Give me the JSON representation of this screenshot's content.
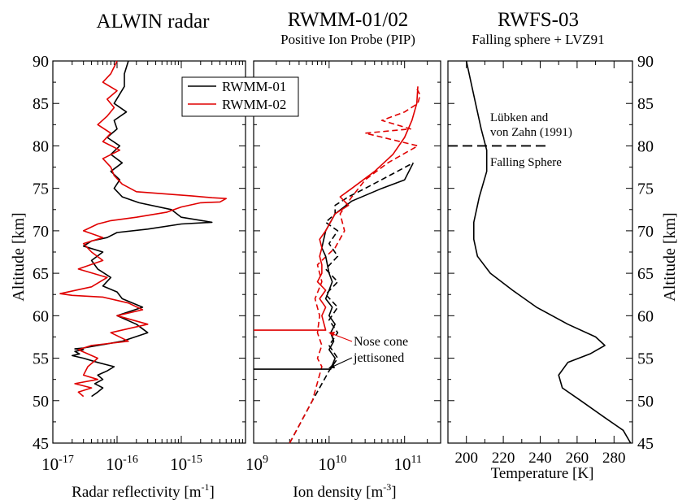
{
  "panels": {
    "left": {
      "title": "ALWIN radar",
      "xlabel": "Radar reflectivity [m",
      "xlabel_sup": "-1",
      "xlabel_end": "]"
    },
    "mid": {
      "title": "RWMM-01/02",
      "subtitle": "Positive Ion Probe (PIP)",
      "xlabel": "Ion density [m",
      "xlabel_sup": "-3",
      "xlabel_end": "]"
    },
    "right": {
      "title": "RWFS-03",
      "subtitle": "Falling sphere + LVZ91",
      "xlabel": "Temperature [K]"
    }
  },
  "ylabel": "Altitude [km]",
  "legend": {
    "items": [
      "RWMM-01",
      "RWMM-02"
    ]
  },
  "annotations": {
    "nose1": "Nose cone",
    "nose2": "jettisoned",
    "lvz1": "Lübken and",
    "lvz2": "von Zahn (1991)",
    "fs": "Falling Sphere"
  },
  "colors": {
    "rwmm01": "#000000",
    "rwmm02": "#e00000"
  },
  "chart_data": [
    {
      "type": "line",
      "title": "ALWIN radar",
      "xlabel": "Radar reflectivity [m^-1]",
      "ylabel": "Altitude [km]",
      "xscale": "log",
      "xlim": [
        1e-17,
        1e-14
      ],
      "ylim": [
        45,
        90
      ],
      "xticks": [
        "10^-17",
        "10^-16",
        "10^-15"
      ],
      "yticks": [
        45,
        50,
        55,
        60,
        65,
        70,
        75,
        80,
        85,
        90
      ],
      "series": [
        {
          "name": "RWMM-01",
          "x": [
            4e-17,
            5e-17,
            6e-17,
            4.5e-17,
            6e-17,
            5e-17,
            7e-17,
            9e-17,
            5e-17,
            3e-17,
            2e-17,
            2.6e-17,
            2.2e-17,
            3e-17,
            2.2e-17,
            3e-17,
            1.2e-16,
            3e-16,
            2e-16,
            1e-16,
            2.5e-16,
            1.2e-16,
            1e-16,
            6e-17,
            8e-17,
            5e-17,
            4e-17,
            6e-17,
            3e-17,
            4e-17,
            7e-17,
            1e-16,
            3e-16,
            1e-15,
            3e-15,
            1e-15,
            7e-16,
            2.2e-16,
            1.2e-16,
            9e-17,
            1.1e-16,
            8e-17,
            1.2e-16,
            8e-17,
            1.1e-16,
            7e-17,
            1e-16,
            9e-17,
            1.4e-16,
            9e-17,
            1.3e-16,
            1.3e-16,
            1.5e-16
          ],
          "y": [
            50.5,
            51,
            51.5,
            52,
            52.5,
            53,
            53.5,
            54,
            54.5,
            55,
            55.3,
            55.5,
            55.8,
            56,
            56.1,
            56.2,
            57,
            58,
            59,
            60,
            61,
            62,
            62.8,
            63.5,
            64.5,
            65.5,
            66.5,
            67.5,
            68.2,
            68.8,
            69.2,
            69.8,
            70.2,
            70.8,
            71,
            71.6,
            72.5,
            73.3,
            74,
            75,
            76,
            77,
            78,
            79,
            80,
            81,
            82,
            83,
            84,
            85,
            87,
            88.5,
            90
          ]
        },
        {
          "name": "RWMM-02",
          "x": [
            3e-17,
            2.5e-17,
            4e-17,
            2.2e-17,
            5e-17,
            3e-17,
            3.5e-17,
            5e-17,
            2.5e-17,
            4e-17,
            1.5e-16,
            8e-17,
            3e-16,
            1e-16,
            2.5e-16,
            1.5e-16,
            6e-17,
            2e-17,
            1.3e-17,
            4e-17,
            7e-17,
            2.5e-17,
            6e-17,
            4e-17,
            3e-17,
            6e-17,
            3e-17,
            5e-17,
            8e-17,
            2e-16,
            6e-16,
            1e-15,
            2e-15,
            4e-15,
            5e-15,
            3e-15,
            1.5e-15,
            2e-16,
            1.2e-16,
            9e-17,
            8e-17,
            6e-17,
            1.1e-16,
            6e-17,
            8e-17,
            5e-17,
            7e-17,
            9e-17,
            7e-17,
            1e-16,
            6e-17,
            8e-17,
            1e-16
          ],
          "y": [
            50.5,
            51,
            51.5,
            52,
            52.5,
            53,
            54,
            55,
            56,
            56.5,
            57,
            58,
            59,
            60,
            60.7,
            61.5,
            62.2,
            62.4,
            62.6,
            63.4,
            64.5,
            65.5,
            66.5,
            67.5,
            68.5,
            69.2,
            70,
            70.8,
            71.2,
            71.6,
            72.2,
            72.8,
            73.3,
            73.4,
            73.8,
            73.9,
            74.1,
            74.6,
            75.5,
            76.5,
            77.5,
            78.5,
            79.5,
            80.5,
            81.5,
            82.5,
            83.5,
            84.5,
            85.5,
            86.5,
            87.5,
            88.5,
            90
          ]
        }
      ]
    },
    {
      "type": "line",
      "title": "RWMM-01/02",
      "subtitle": "Positive Ion Probe (PIP)",
      "xlabel": "Ion density [m^-3]",
      "ylabel": "Altitude [km]",
      "xscale": "log",
      "xlim": [
        1000000000.0,
        300000000000.0
      ],
      "ylim": [
        45,
        90
      ],
      "xticks": [
        "10^9",
        "10^10",
        "10^11"
      ],
      "series": [
        {
          "name": "RWMM-01 solid",
          "x": [
            1000000000.0,
            10500000000.0,
            12000000000.0,
            10000000000.0,
            11500000000.0,
            10500000000.0,
            12000000000.0,
            10000000000.0,
            11000000000.0,
            9000000000.0,
            10000000000.0,
            11000000000.0,
            10000000000.0,
            9000000000.0,
            8000000000.0,
            9000000000.0,
            12000000000.0,
            20000000000.0,
            50000000000.0,
            100000000000.0,
            130000000000.0
          ],
          "y": [
            53.7,
            53.7,
            55,
            56,
            57,
            58,
            59,
            60,
            61,
            62,
            63,
            64,
            65,
            67,
            68,
            70,
            72,
            73.5,
            75,
            76,
            78
          ]
        },
        {
          "name": "RWMM-01 dashed",
          "x": [
            3000000000.0,
            6000000000.0,
            10000000000.0,
            13000000000.0,
            10000000000.0,
            13000000000.0,
            10000000000.0,
            13000000000.0,
            9000000000.0,
            13000000000.0,
            9000000000.0,
            13000000000.0,
            10000000000.0,
            13000000000.0,
            9000000000.0,
            12000000000.0,
            12000000000.0,
            18000000000.0,
            30000000000.0,
            80000000000.0,
            130000000000.0
          ],
          "y": [
            45,
            50,
            53.5,
            55,
            56.5,
            58,
            59.5,
            61,
            62.5,
            64,
            65.5,
            67,
            68.5,
            70,
            71,
            72,
            73,
            74,
            75,
            77,
            78
          ]
        },
        {
          "name": "RWMM-02 solid",
          "x": [
            1000000000.0,
            9000000000.0,
            8000000000.0,
            9000000000.0,
            7500000000.0,
            9000000000.0,
            7000000000.0,
            8000000000.0,
            8000000000.0,
            7500000000.0,
            8000000000.0,
            7500000000.0,
            9000000000.0,
            12000000000.0,
            18000000000.0,
            14000000000.0,
            20000000000.0,
            40000000000.0,
            70000000000.0,
            100000000000.0,
            125000000000.0,
            145000000000.0,
            150000000000.0
          ],
          "y": [
            58.3,
            58.3,
            60,
            61,
            62,
            63,
            64,
            65,
            66,
            67,
            68,
            69,
            70,
            72,
            73,
            74,
            75,
            77,
            79,
            81,
            83,
            85,
            87
          ]
        },
        {
          "name": "RWMM-02 dashed",
          "x": [
            3000000000.0,
            6000000000.0,
            8000000000.0,
            7000000000.0,
            8000000000.0,
            7000000000.0,
            7500000000.0,
            6500000000.0,
            8000000000.0,
            7000000000.0,
            12000000000.0,
            16000000000.0,
            14000000000.0,
            20000000000.0,
            30000000000.0,
            60000000000.0,
            150000000000.0,
            30000000000.0,
            120000000000.0,
            50000000000.0,
            100000000000.0,
            150000000000.0,
            160000000000.0,
            140000000000.0
          ],
          "y": [
            45,
            50,
            54,
            55,
            56.5,
            58,
            60,
            62,
            64,
            66,
            68,
            70,
            72,
            74,
            76,
            78,
            80,
            81.5,
            82,
            83,
            84,
            85,
            86,
            87
          ]
        }
      ]
    },
    {
      "type": "line",
      "title": "RWFS-03",
      "subtitle": "Falling sphere + LVZ91",
      "xlabel": "Temperature [K]",
      "ylabel": "Altitude [km]",
      "xlim": [
        190,
        290
      ],
      "ylim": [
        45,
        90
      ],
      "xticks": [
        200,
        220,
        240,
        260,
        280
      ],
      "yticks": [
        45,
        50,
        55,
        60,
        65,
        70,
        75,
        80,
        85,
        90
      ],
      "series": [
        {
          "name": "Temperature",
          "x": [
            289,
            285,
            275,
            262,
            252,
            250,
            255,
            267,
            275,
            270,
            255,
            238,
            225,
            213,
            206,
            204,
            204,
            207,
            211,
            211,
            208,
            205,
            202,
            200
          ],
          "y": [
            45,
            46.5,
            48,
            50,
            51.5,
            53,
            54.5,
            55.5,
            56.5,
            57.5,
            59,
            61,
            63,
            65,
            67,
            69,
            71,
            74,
            77,
            79.5,
            82,
            85,
            88,
            90
          ]
        }
      ],
      "hline": 80
    }
  ]
}
